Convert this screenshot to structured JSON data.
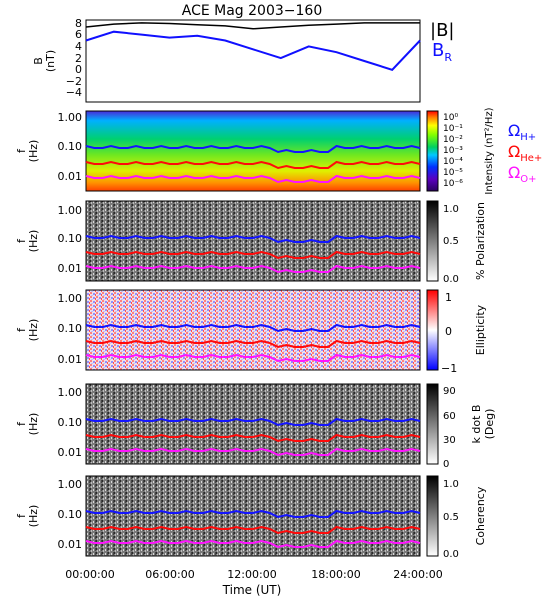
{
  "title": "ACE Mag 2003−160",
  "xlabel": "Time (UT)",
  "x_ticks": [
    "00:00:00",
    "06:00:00",
    "12:00:00",
    "18:00:00",
    "24:00:00"
  ],
  "colors": {
    "total_field": "#000000",
    "radial_field": "#1010ff",
    "h_plus": "#1414ff",
    "he_plus": "#ff0a0a",
    "o_plus": "#ff14ff"
  },
  "chart_data": [
    {
      "type": "line",
      "panel": "magnetic-field",
      "ylabel": [
        "B",
        "(nT)"
      ],
      "y_ticks": [
        "8",
        "6",
        "4",
        "2",
        "0",
        "−2",
        "−4"
      ],
      "ylim": [
        -5.5,
        8.5
      ],
      "x_unit": "hours UT",
      "xlim": [
        0,
        24
      ],
      "legend": [
        {
          "label": "|B|",
          "sub": ""
        },
        {
          "label": "B",
          "sub": "R"
        }
      ],
      "series": [
        {
          "name": "|B|",
          "x": [
            0,
            2,
            4,
            6,
            8,
            10,
            12,
            14,
            16,
            18,
            20,
            22,
            24
          ],
          "values": [
            7.3,
            7.8,
            8.0,
            7.9,
            7.7,
            7.5,
            7.0,
            7.3,
            7.6,
            7.8,
            8.0,
            8.0,
            8.0
          ]
        },
        {
          "name": "B_R",
          "x": [
            0,
            2,
            4,
            6,
            8,
            10,
            12,
            14,
            16,
            18,
            20,
            22,
            24
          ],
          "values": [
            5.0,
            6.5,
            6.0,
            5.5,
            5.8,
            5.0,
            3.5,
            2.0,
            4.0,
            3.0,
            1.5,
            0.0,
            5.0
          ]
        }
      ]
    },
    {
      "type": "heatmap",
      "panel": "intensity",
      "ylabel": [
        "f",
        "(Hz)"
      ],
      "y_ticks": [
        "1.00",
        "0.10",
        "0.01"
      ],
      "y_scale": "log",
      "colorbar": {
        "label": "Intensity (nT²/Hz)",
        "ticks": [
          "10⁰",
          "10⁻¹",
          "10⁻²",
          "10⁻³",
          "10⁻⁴",
          "10⁻⁵",
          "10⁻⁶"
        ]
      },
      "legend": [
        {
          "label": "Ω",
          "sub": "H+"
        },
        {
          "label": "Ω",
          "sub": "He+"
        },
        {
          "label": "Ω",
          "sub": "O+"
        }
      ]
    },
    {
      "type": "heatmap",
      "panel": "polarization",
      "ylabel": [
        "f",
        "(Hz)"
      ],
      "y_ticks": [
        "1.00",
        "0.10",
        "0.01"
      ],
      "colorbar": {
        "label": "% Polarization",
        "ticks": [
          "1.0",
          "0.5",
          "0.0"
        ]
      }
    },
    {
      "type": "heatmap",
      "panel": "ellipticity",
      "ylabel": [
        "f",
        "(Hz)"
      ],
      "y_ticks": [
        "1.00",
        "0.10",
        "0.01"
      ],
      "colorbar": {
        "label": "Ellipticity",
        "ticks": [
          "1",
          "0",
          "−1"
        ]
      }
    },
    {
      "type": "heatmap",
      "panel": "k-dot-b",
      "ylabel": [
        "f",
        "(Hz)"
      ],
      "y_ticks": [
        "1.00",
        "0.10",
        "0.01"
      ],
      "colorbar": {
        "label": "k dot B",
        "label2": "(Deg)",
        "ticks": [
          "90",
          "60",
          "30",
          "0"
        ]
      }
    },
    {
      "type": "heatmap",
      "panel": "coherency",
      "ylabel": [
        "f",
        "(Hz)"
      ],
      "y_ticks": [
        "1.00",
        "0.10",
        "0.01"
      ],
      "colorbar": {
        "label": "Coherency",
        "ticks": [
          "1.0",
          "0.5",
          "0.0"
        ]
      }
    }
  ]
}
